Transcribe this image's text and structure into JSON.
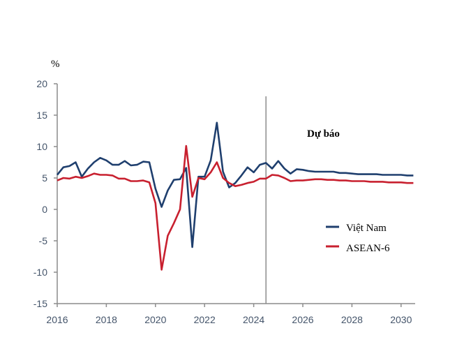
{
  "chart_data": {
    "type": "line",
    "title": "",
    "xlabel": "",
    "ylabel": "%",
    "ylim": [
      -15,
      20
    ],
    "yticks": [
      20,
      15,
      10,
      5,
      0,
      -5,
      -10,
      -15
    ],
    "xlim": [
      2016,
      2030.6
    ],
    "xticks": [
      2016,
      2018,
      2020,
      2022,
      2024,
      2026,
      2028,
      2030
    ],
    "grid": false,
    "legend_position": "right",
    "forecast_start": 2024.5,
    "forecast_label": "Dự báo",
    "x": [
      2016,
      2016.25,
      2016.5,
      2016.75,
      2017,
      2017.25,
      2017.5,
      2017.75,
      2018,
      2018.25,
      2018.5,
      2018.75,
      2019,
      2019.25,
      2019.5,
      2019.75,
      2020,
      2020.25,
      2020.5,
      2020.75,
      2021,
      2021.25,
      2021.5,
      2021.75,
      2022,
      2022.25,
      2022.5,
      2022.75,
      2023,
      2023.25,
      2023.5,
      2023.75,
      2024,
      2024.25,
      2024.5,
      2024.75,
      2025,
      2025.25,
      2025.5,
      2025.75,
      2026,
      2026.25,
      2026.5,
      2026.75,
      2027,
      2027.25,
      2027.5,
      2027.75,
      2028,
      2028.25,
      2028.5,
      2028.75,
      2029,
      2029.25,
      2029.5,
      2029.75,
      2030,
      2030.25,
      2030.5
    ],
    "series": [
      {
        "name": "Việt Nam",
        "color": "#1f3f6e",
        "values": [
          5.5,
          6.7,
          6.9,
          7.5,
          5.2,
          6.5,
          7.5,
          8.2,
          7.8,
          7.1,
          7.1,
          7.7,
          7.0,
          7.1,
          7.6,
          7.5,
          3.3,
          0.4,
          3.0,
          4.7,
          4.8,
          6.6,
          -6.0,
          5.2,
          5.2,
          7.8,
          13.8,
          6.0,
          3.5,
          4.2,
          5.4,
          6.7,
          5.9,
          7.1,
          7.4,
          6.5,
          7.7,
          6.5,
          5.7,
          6.4,
          6.3,
          6.1,
          6.0,
          6.0,
          6.0,
          6.0,
          5.8,
          5.8,
          5.7,
          5.6,
          5.6,
          5.6,
          5.6,
          5.5,
          5.5,
          5.5,
          5.5,
          5.4,
          5.4
        ]
      },
      {
        "name": "ASEAN-6",
        "color": "#c8202f",
        "values": [
          4.6,
          5.0,
          4.9,
          5.2,
          5.0,
          5.3,
          5.7,
          5.5,
          5.5,
          5.4,
          4.9,
          4.9,
          4.5,
          4.5,
          4.6,
          4.3,
          1.0,
          -9.6,
          -4.2,
          -2.2,
          0.0,
          10.1,
          2.0,
          5.0,
          4.8,
          5.9,
          7.5,
          5.0,
          4.2,
          3.7,
          3.9,
          4.2,
          4.4,
          4.9,
          4.9,
          5.5,
          5.4,
          5.0,
          4.5,
          4.6,
          4.6,
          4.7,
          4.8,
          4.8,
          4.7,
          4.7,
          4.6,
          4.6,
          4.5,
          4.5,
          4.5,
          4.4,
          4.4,
          4.4,
          4.3,
          4.3,
          4.3,
          4.2,
          4.2
        ]
      }
    ]
  }
}
